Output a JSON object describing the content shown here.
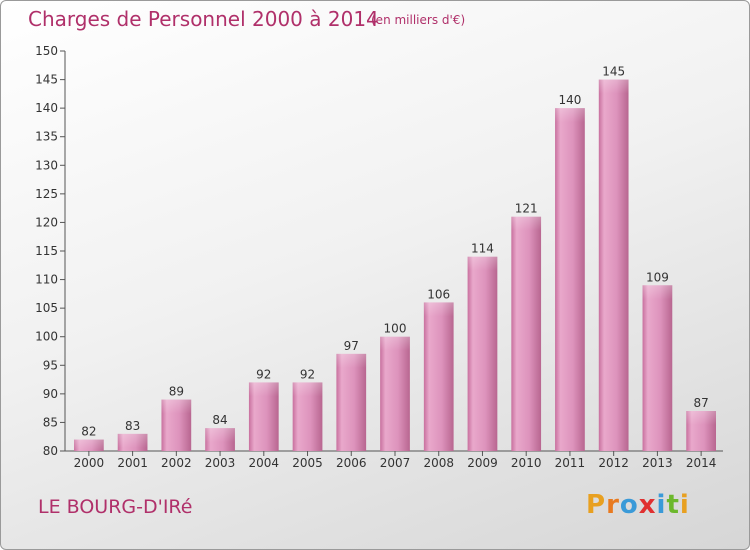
{
  "header": {
    "title": "Charges de Personnel 2000 à 2014",
    "subtitle": "(en milliers d'€)"
  },
  "footer": {
    "town": "LE BOURG-D'IRé",
    "logo_letters": [
      "P",
      "r",
      "o",
      "x",
      "i",
      "t",
      "i"
    ],
    "logo_colors": [
      "#e8a020",
      "#e87a20",
      "#3a9ad8",
      "#e03030",
      "#3a9ad8",
      "#6cb82c",
      "#e8a020"
    ]
  },
  "colors": {
    "bar": "#c8709e",
    "bar_light": "#e9a8cb",
    "text": "#b0306a"
  },
  "chart_data": {
    "type": "bar",
    "title": "Charges de Personnel 2000 à 2014",
    "subtitle": "(en milliers d'€)",
    "xlabel": "",
    "ylabel": "",
    "categories": [
      "2000",
      "2001",
      "2002",
      "2003",
      "2004",
      "2005",
      "2006",
      "2007",
      "2008",
      "2009",
      "2010",
      "2011",
      "2012",
      "2013",
      "2014"
    ],
    "values": [
      82,
      83,
      89,
      84,
      92,
      92,
      97,
      100,
      106,
      114,
      121,
      140,
      145,
      109,
      87
    ],
    "ylim": [
      80,
      150
    ],
    "yticks": [
      80,
      85,
      90,
      95,
      100,
      105,
      110,
      115,
      120,
      125,
      130,
      135,
      140,
      145,
      150
    ],
    "grid": false,
    "legend": "none"
  }
}
